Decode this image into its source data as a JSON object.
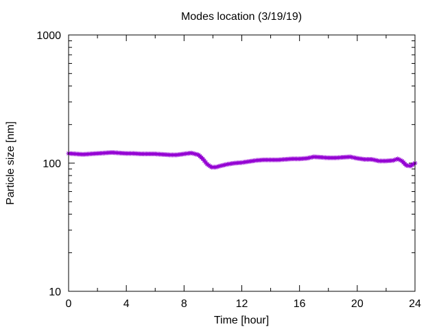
{
  "chart_data": {
    "type": "line",
    "title": "Modes location (3/19/19)",
    "xlabel": "Time [hour]",
    "ylabel": "Particle size [nm]",
    "xlim": [
      0,
      24
    ],
    "ylim": [
      10,
      1000
    ],
    "yscale": "log",
    "xticks": [
      0,
      4,
      8,
      12,
      16,
      20,
      24
    ],
    "yticks": [
      10,
      100,
      1000
    ],
    "grid": false,
    "legend": "none",
    "series": [
      {
        "color": "#9400d3",
        "marker": "star",
        "x": [
          0.0,
          0.5,
          1.0,
          1.5,
          2.0,
          2.5,
          3.0,
          3.5,
          4.0,
          4.5,
          5.0,
          5.5,
          6.0,
          6.5,
          7.0,
          7.5,
          8.0,
          8.5,
          9.0,
          9.3,
          9.6,
          9.9,
          10.2,
          10.5,
          11.0,
          11.5,
          12.0,
          12.5,
          13.0,
          13.5,
          14.0,
          14.5,
          15.0,
          15.5,
          16.0,
          16.5,
          17.0,
          17.5,
          18.0,
          18.5,
          19.0,
          19.5,
          20.0,
          20.5,
          21.0,
          21.5,
          22.0,
          22.5,
          22.8,
          23.1,
          23.4,
          23.7,
          24.0
        ],
        "y": [
          119,
          118,
          117,
          118,
          119,
          120,
          121,
          120,
          119,
          119,
          118,
          118,
          118,
          117,
          116,
          116,
          118,
          120,
          116,
          108,
          98,
          93,
          93,
          95,
          98,
          100,
          101,
          103,
          105,
          106,
          106,
          106,
          107,
          108,
          108,
          109,
          112,
          111,
          110,
          110,
          111,
          112,
          109,
          107,
          107,
          104,
          104,
          105,
          108,
          104,
          96,
          95,
          100
        ]
      }
    ]
  }
}
